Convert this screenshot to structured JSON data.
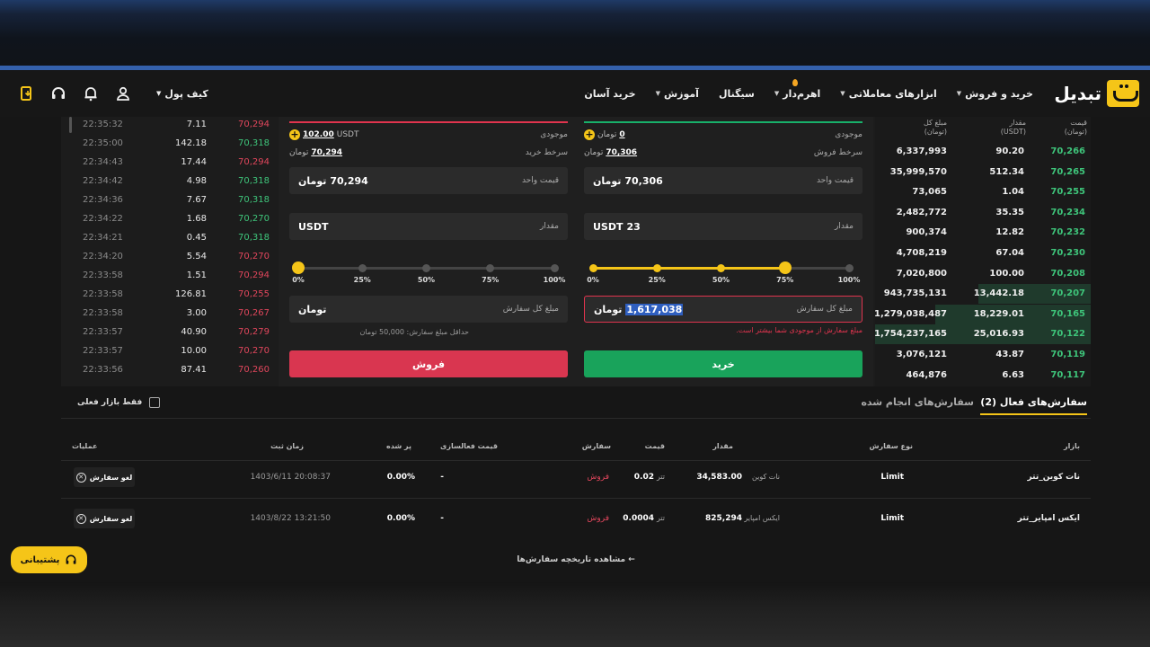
{
  "header": {
    "logo_text": "تبدیل",
    "nav": [
      "خرید و فروش",
      "ابزارهای معاملاتی",
      "اهرم‌دار",
      "سیگنال",
      "آموزش",
      "خرید آسان"
    ],
    "wallet_label": "کیف پول"
  },
  "trades": [
    {
      "time": "22:35:32",
      "amount": "7.11",
      "price": "70,294",
      "side": "sell"
    },
    {
      "time": "22:35:00",
      "amount": "142.18",
      "price": "70,318",
      "side": "buy"
    },
    {
      "time": "22:34:43",
      "amount": "17.44",
      "price": "70,294",
      "side": "sell"
    },
    {
      "time": "22:34:42",
      "amount": "4.98",
      "price": "70,318",
      "side": "buy"
    },
    {
      "time": "22:34:36",
      "amount": "7.67",
      "price": "70,318",
      "side": "buy"
    },
    {
      "time": "22:34:22",
      "amount": "1.68",
      "price": "70,270",
      "side": "buy"
    },
    {
      "time": "22:34:21",
      "amount": "0.45",
      "price": "70,318",
      "side": "buy"
    },
    {
      "time": "22:34:20",
      "amount": "5.54",
      "price": "70,270",
      "side": "sell"
    },
    {
      "time": "22:33:58",
      "amount": "1.51",
      "price": "70,294",
      "side": "sell"
    },
    {
      "time": "22:33:58",
      "amount": "126.81",
      "price": "70,255",
      "side": "sell"
    },
    {
      "time": "22:33:58",
      "amount": "3.00",
      "price": "70,267",
      "side": "sell"
    },
    {
      "time": "22:33:57",
      "amount": "40.90",
      "price": "70,279",
      "side": "sell"
    },
    {
      "time": "22:33:57",
      "amount": "10.00",
      "price": "70,270",
      "side": "sell"
    },
    {
      "time": "22:33:56",
      "amount": "87.41",
      "price": "70,260",
      "side": "sell"
    }
  ],
  "buy_form": {
    "balance_label": "موجودی",
    "balance_value": "0",
    "balance_unit": "تومان",
    "rate_label": "سرخط فروش",
    "rate_value": "70,306",
    "rate_unit": "تومان",
    "unit_price_label": "قیمت واحد",
    "unit_price_value": "70,306",
    "unit_price_unit": "تومان",
    "amount_label": "مقدار",
    "amount_value": "23",
    "amount_unit": "USDT",
    "slider_ticks": [
      "0%",
      "25%",
      "50%",
      "75%",
      "100%"
    ],
    "slider_percent": 75,
    "total_label": "مبلغ کل سفارش",
    "total_value": "1,617,038",
    "total_unit": "تومان",
    "error": "مبلغ سفارش از موجودی شما بیشتر است.",
    "button": "خرید"
  },
  "sell_form": {
    "balance_label": "موجودی",
    "balance_value": "102.00",
    "balance_unit": "USDT",
    "rate_label": "سرخط خرید",
    "rate_value": "70,294",
    "rate_unit": "تومان",
    "unit_price_label": "قیمت واحد",
    "unit_price_value": "70,294",
    "unit_price_unit": "تومان",
    "amount_label": "مقدار",
    "amount_unit": "USDT",
    "slider_ticks": [
      "0%",
      "25%",
      "50%",
      "75%",
      "100%"
    ],
    "slider_percent": 0,
    "total_label": "مبلغ کل سفارش",
    "total_unit": "تومان",
    "min_note": "حداقل مبلغ سفارش: 50,000 تومان",
    "button": "فروش"
  },
  "order_book": {
    "headers": {
      "price": [
        "قیمت",
        "(تومان)"
      ],
      "amount": [
        "مقدار",
        "(USDT)"
      ],
      "total": [
        "مبلغ کل",
        "(تومان)"
      ]
    },
    "rows": [
      {
        "price": "70,266",
        "amount": "90.20",
        "total": "6,337,993",
        "depth": 0
      },
      {
        "price": "70,265",
        "amount": "512.34",
        "total": "35,999,570",
        "depth": 0
      },
      {
        "price": "70,255",
        "amount": "1.04",
        "total": "73,065",
        "depth": 0
      },
      {
        "price": "70,234",
        "amount": "35.35",
        "total": "2,482,772",
        "depth": 0
      },
      {
        "price": "70,232",
        "amount": "12.82",
        "total": "900,374",
        "depth": 0
      },
      {
        "price": "70,230",
        "amount": "67.04",
        "total": "4,708,219",
        "depth": 0
      },
      {
        "price": "70,208",
        "amount": "100.00",
        "total": "7,020,800",
        "depth": 0
      },
      {
        "price": "70,207",
        "amount": "13,442.18",
        "total": "943,735,131",
        "depth": 0.52
      },
      {
        "price": "70,165",
        "amount": "18,229.01",
        "total": "1,279,038,487",
        "depth": 0.72
      },
      {
        "price": "70,122",
        "amount": "25,016.93",
        "total": "1,754,237,165",
        "depth": 1
      },
      {
        "price": "70,119",
        "amount": "43.87",
        "total": "3,076,121",
        "depth": 0
      },
      {
        "price": "70,117",
        "amount": "6.63",
        "total": "464,876",
        "depth": 0
      }
    ]
  },
  "orders": {
    "tab_active": "سفارش‌های فعال",
    "tab_active_count": "(2)",
    "tab_done": "سفارش‌های انجام شده",
    "only_current": "فقط بازار فعلی",
    "columns": [
      "بازار",
      "نوع سفارش",
      "مقدار",
      "قیمت",
      "سفارش",
      "قیمت فعالسازی",
      "پر شده",
      "زمان ثبت",
      "عملیات"
    ],
    "rows": [
      {
        "market": "نات کوین_تتر",
        "type": "Limit",
        "amount": "34,583.00",
        "amount_unit": "نات کوین",
        "price": "0.02",
        "price_unit": "تتر",
        "side": "فروش",
        "trigger": "-",
        "filled": "0.00%",
        "time": "1403/6/11 20:08:37",
        "action": "لغو سفارش"
      },
      {
        "market": "ایکس امپایر_تتر",
        "type": "Limit",
        "amount": "825,294",
        "amount_unit": "ایکس امپایر",
        "price": "0.0004",
        "price_unit": "تتر",
        "side": "فروش",
        "trigger": "-",
        "filled": "0.00%",
        "time": "1403/8/22 13:21:50",
        "action": "لغو سفارش"
      }
    ],
    "history_link": "مشاهده تاریخچه سفارش‌ها"
  },
  "support_label": "پشتیبانی",
  "colors": {
    "accent": "#f5c518",
    "buy": "#19a35b",
    "sell": "#d93650",
    "up": "#3ec47a",
    "down": "#e0465c"
  }
}
